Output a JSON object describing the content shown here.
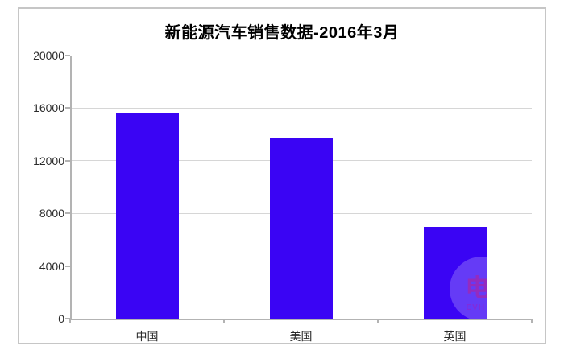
{
  "chart_data": {
    "type": "bar",
    "title": "新能源汽车销售数据-2016年3月",
    "categories": [
      "中国",
      "美国",
      "英国"
    ],
    "values": [
      15650,
      13700,
      7000
    ],
    "ylim": [
      0,
      20000
    ],
    "yticks": [
      0,
      4000,
      8000,
      12000,
      16000,
      20000
    ],
    "xlabel": "",
    "ylabel": "",
    "grid": true,
    "legend_position": "none",
    "bar_color": "#3a04f4",
    "gridline_color": "#d6d6d6",
    "axis_color": "#b3b3b3",
    "frame_border_color": "#c6c6c6",
    "title_color": "#000000",
    "tick_label_color": "#2b2b2b"
  },
  "watermark": {
    "glyph": "电",
    "text": "EVH"
  }
}
